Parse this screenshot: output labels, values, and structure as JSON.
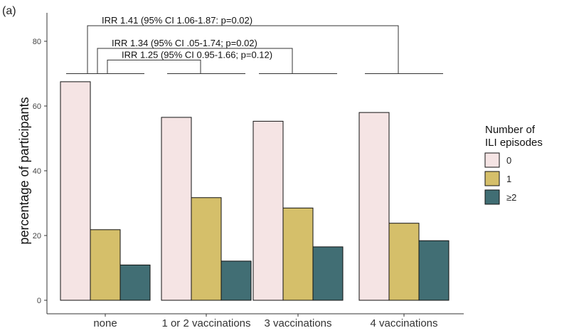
{
  "panel_label": "(a)",
  "chart_data": {
    "type": "bar",
    "title": "",
    "xlabel": "",
    "ylabel": "percentage of participants",
    "ylim": [
      0,
      88
    ],
    "yticks": [
      0,
      20,
      40,
      60,
      80
    ],
    "grid": false,
    "legend_position": "right",
    "categories": [
      "none",
      "1 or 2 vaccinations",
      "3 vaccinations",
      "4 vaccinations"
    ],
    "legend": {
      "title_lines": [
        "Number of",
        "ILI episodes"
      ]
    },
    "series": [
      {
        "name": "0",
        "color": "#f5e4e4",
        "values": [
          67.5,
          56.5,
          55.3,
          58.0
        ]
      },
      {
        "name": "1",
        "color": "#d5bf6a",
        "values": [
          21.8,
          31.7,
          28.5,
          23.8
        ]
      },
      {
        "name": "≥2",
        "color": "#416e74",
        "values": [
          10.9,
          12.1,
          16.5,
          18.4
        ]
      }
    ],
    "annotations": [
      {
        "text": "IRR 1.41 (95% CI 1.06-1.87: p=0.02)",
        "from_category": 0,
        "to_category": 3,
        "level": 84.8
      },
      {
        "text": "IRR 1.34 (95% CI .05-1.74; p=0.02)",
        "from_category": 0,
        "to_category": 2,
        "level": 77.8
      },
      {
        "text": "IRR 1.25 (95% CI 0.95-1.66; p=0.12)",
        "from_category": 0,
        "to_category": 1,
        "level": 74.2
      }
    ],
    "bracket_base_level": 70
  }
}
